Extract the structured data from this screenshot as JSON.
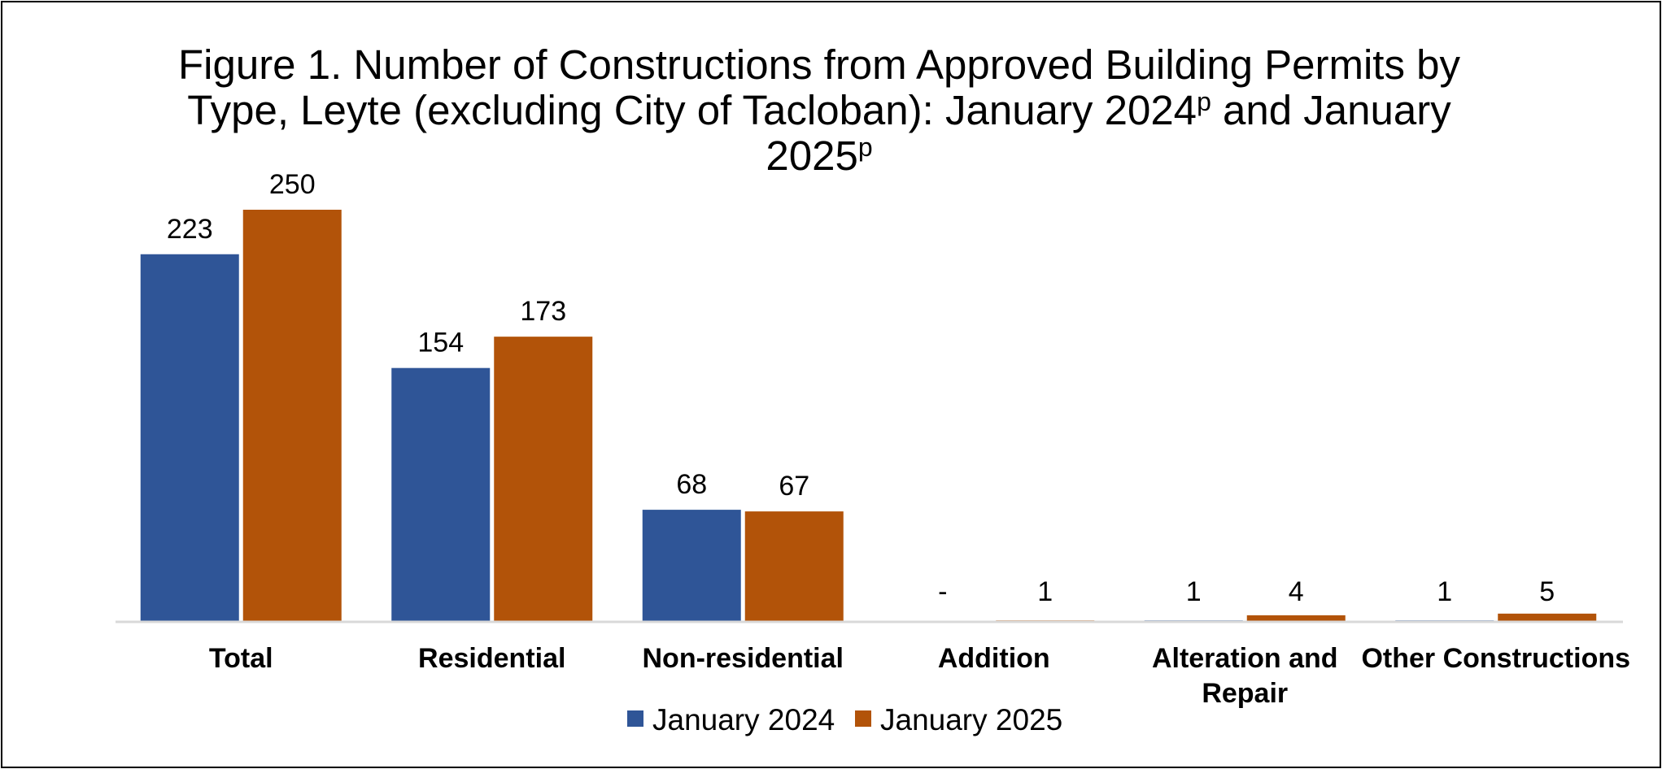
{
  "chart_data": {
    "type": "bar",
    "title": {
      "line1": "Figure 1. Number of Constructions from Approved Building Permits by",
      "line2_pre": "Type, Leyte (excluding City of Tacloban): January 2024",
      "sup1": "p",
      "line2_post": " and January",
      "line3_pre": "2025",
      "sup2": "p"
    },
    "categories": [
      [
        "Total"
      ],
      [
        "Residential"
      ],
      [
        "Non-residential"
      ],
      [
        "Addition"
      ],
      [
        "Alteration and",
        "Repair"
      ],
      [
        "Other Constructions"
      ]
    ],
    "series": [
      {
        "name": "January 2024",
        "color": "#2F5597",
        "values": [
          223,
          154,
          68,
          0,
          1,
          1
        ],
        "labels": [
          "223",
          "154",
          "68",
          "-",
          "1",
          "1"
        ]
      },
      {
        "name": "January 2025",
        "color": "#B25309",
        "values": [
          250,
          173,
          67,
          1,
          4,
          5
        ],
        "labels": [
          "250",
          "173",
          "67",
          "1",
          "4",
          "5"
        ]
      }
    ],
    "ylim": [
      0,
      250
    ],
    "grid": false,
    "legend_position": "bottom"
  }
}
